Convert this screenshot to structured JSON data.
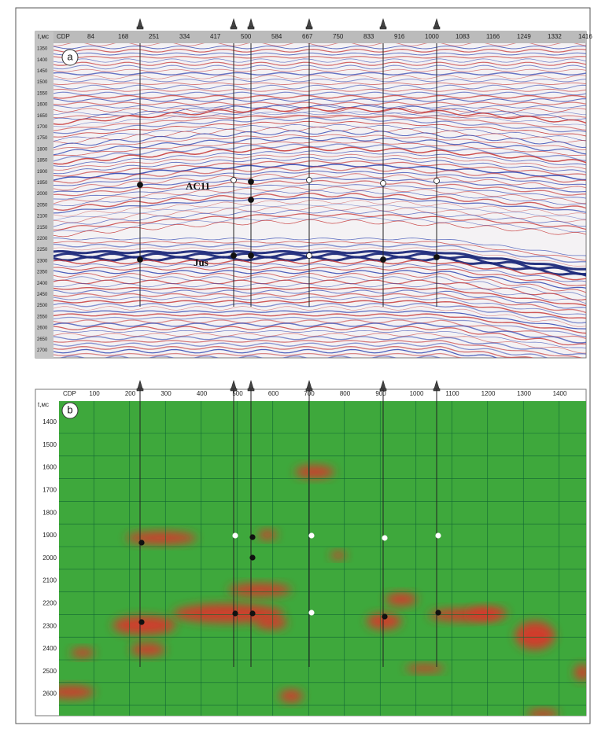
{
  "panel_a": {
    "label": "a",
    "x_axis": [
      "CDP",
      "84",
      "168",
      "251",
      "334",
      "417",
      "500",
      "584",
      "667",
      "750",
      "833",
      "916",
      "1000",
      "1083",
      "1166",
      "1249",
      "1332",
      "1416"
    ],
    "y_axis_title": "t,мс",
    "y_axis": [
      "1350",
      "1400",
      "1450",
      "1500",
      "1550",
      "1600",
      "1650",
      "1700",
      "1750",
      "1800",
      "1850",
      "1900",
      "1950",
      "2000",
      "2050",
      "2100",
      "2150",
      "2200",
      "2250",
      "2300",
      "2350",
      "2400",
      "2450",
      "2500",
      "2550",
      "2600",
      "2650",
      "2700"
    ],
    "horizons": [
      "AC11",
      "Jus"
    ]
  },
  "panel_b": {
    "label": "b",
    "x_axis_title": "CDP",
    "x_axis": [
      "100",
      "200",
      "300",
      "400",
      "500",
      "600",
      "700",
      "800",
      "900",
      "1000",
      "1100",
      "1200",
      "1300",
      "1400"
    ],
    "y_axis_title": "t,мс",
    "y_axis": [
      "1400",
      "1500",
      "1600",
      "1700",
      "1800",
      "1900",
      "2000",
      "2100",
      "2200",
      "2300",
      "2400",
      "2500",
      "2600"
    ]
  }
}
